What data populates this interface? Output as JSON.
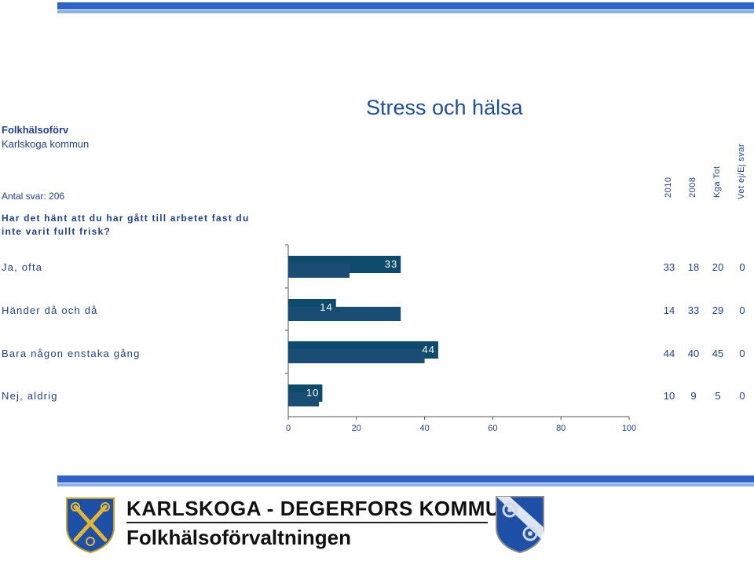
{
  "header": {
    "title": "Stress och  hälsa",
    "org_name": "Folkhälsoförv",
    "org_sub": "Karlskoga kommun",
    "answers": "Antal svar: 206",
    "question": "Har det hänt att du har gått till arbetet fast du inte varit fullt frisk?"
  },
  "columns": [
    "2010",
    "2008",
    "Kga Tot",
    "Vet ej/Ej svar"
  ],
  "rows": [
    {
      "label": "Ja, ofta",
      "values": [
        "33",
        "18",
        "20",
        "0"
      ]
    },
    {
      "label": "Händer då och då",
      "values": [
        "14",
        "33",
        "29",
        "0"
      ]
    },
    {
      "label": "Bara någon enstaka gång",
      "values": [
        "44",
        "40",
        "45",
        "0"
      ]
    },
    {
      "label": "Nej, aldrig",
      "values": [
        "10",
        "9",
        "5",
        "0"
      ]
    }
  ],
  "chart_data": {
    "type": "bar",
    "orientation": "horizontal",
    "categories": [
      "Ja, ofta",
      "Händer då och då",
      "Bara någon enstaka gång",
      "Nej, aldrig"
    ],
    "series": [
      {
        "name": "2010",
        "values": [
          33,
          14,
          44,
          10
        ],
        "color": "#0e4a6b"
      },
      {
        "name": "2008",
        "values": [
          18,
          33,
          40,
          9
        ],
        "color": "#1a4d73"
      }
    ],
    "data_labels": [
      "33",
      "14",
      "44",
      "10"
    ],
    "xlim": [
      0,
      100
    ],
    "xticks": [
      "0",
      "20",
      "40",
      "60",
      "80",
      "100"
    ],
    "grid": false
  },
  "footer": {
    "title": "KARLSKOGA - DEGERFORS  KOMMUNER",
    "subtitle": "Folkhälsoförvaltningen"
  },
  "colors": {
    "accent_blue": "#2f63c6",
    "light_blue": "#8fb0e6",
    "text_blue": "#1f3f86",
    "bar_dark": "#0e4a6b"
  }
}
